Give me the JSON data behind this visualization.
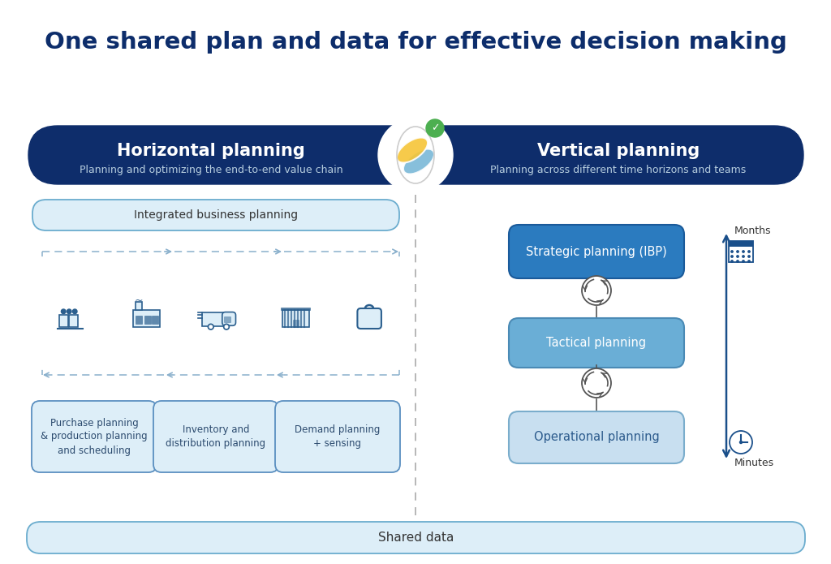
{
  "title": "One shared plan and data for effective decision making",
  "title_color": "#0d2d6b",
  "title_fontsize": 21,
  "bg_color": "#ffffff",
  "header_bg": "#0e2d6b",
  "header_text_color": "#ffffff",
  "horiz_title": "Horizontal planning",
  "horiz_subtitle": "Planning and optimizing the end-to-end value chain",
  "vert_title": "Vertical planning",
  "vert_subtitle": "Planning across different time horizons and teams",
  "ibp_box_text": "Integrated business planning",
  "ibp_box_color": "#ddeef8",
  "ibp_box_border": "#6aacce",
  "flow_labels": [
    "Purchase planning\n& production planning\nand scheduling",
    "Inventory and\ndistribution planning",
    "Demand planning\n+ sensing"
  ],
  "flow_box_color": "#ddeef8",
  "flow_box_border": "#5a8fc0",
  "strategic_text": "Strategic planning (IBP)",
  "strategic_color": "#2b7bbf",
  "tactical_text": "Tactical planning",
  "tactical_color": "#6aaed6",
  "operational_text": "Operational planning",
  "operational_color": "#c8dff0",
  "operational_text_color": "#2b5a8c",
  "shared_data_text": "Shared data",
  "shared_data_color": "#ddeef8",
  "shared_data_border": "#6aacce",
  "months_text": "Months",
  "minutes_text": "Minutes",
  "dashed_line_color": "#aaaaaa",
  "arrow_color": "#8ab0cc",
  "divider_color": "#aaaaaa",
  "cycle_color": "#444444",
  "vert_arrow_color": "#1a4f8a"
}
